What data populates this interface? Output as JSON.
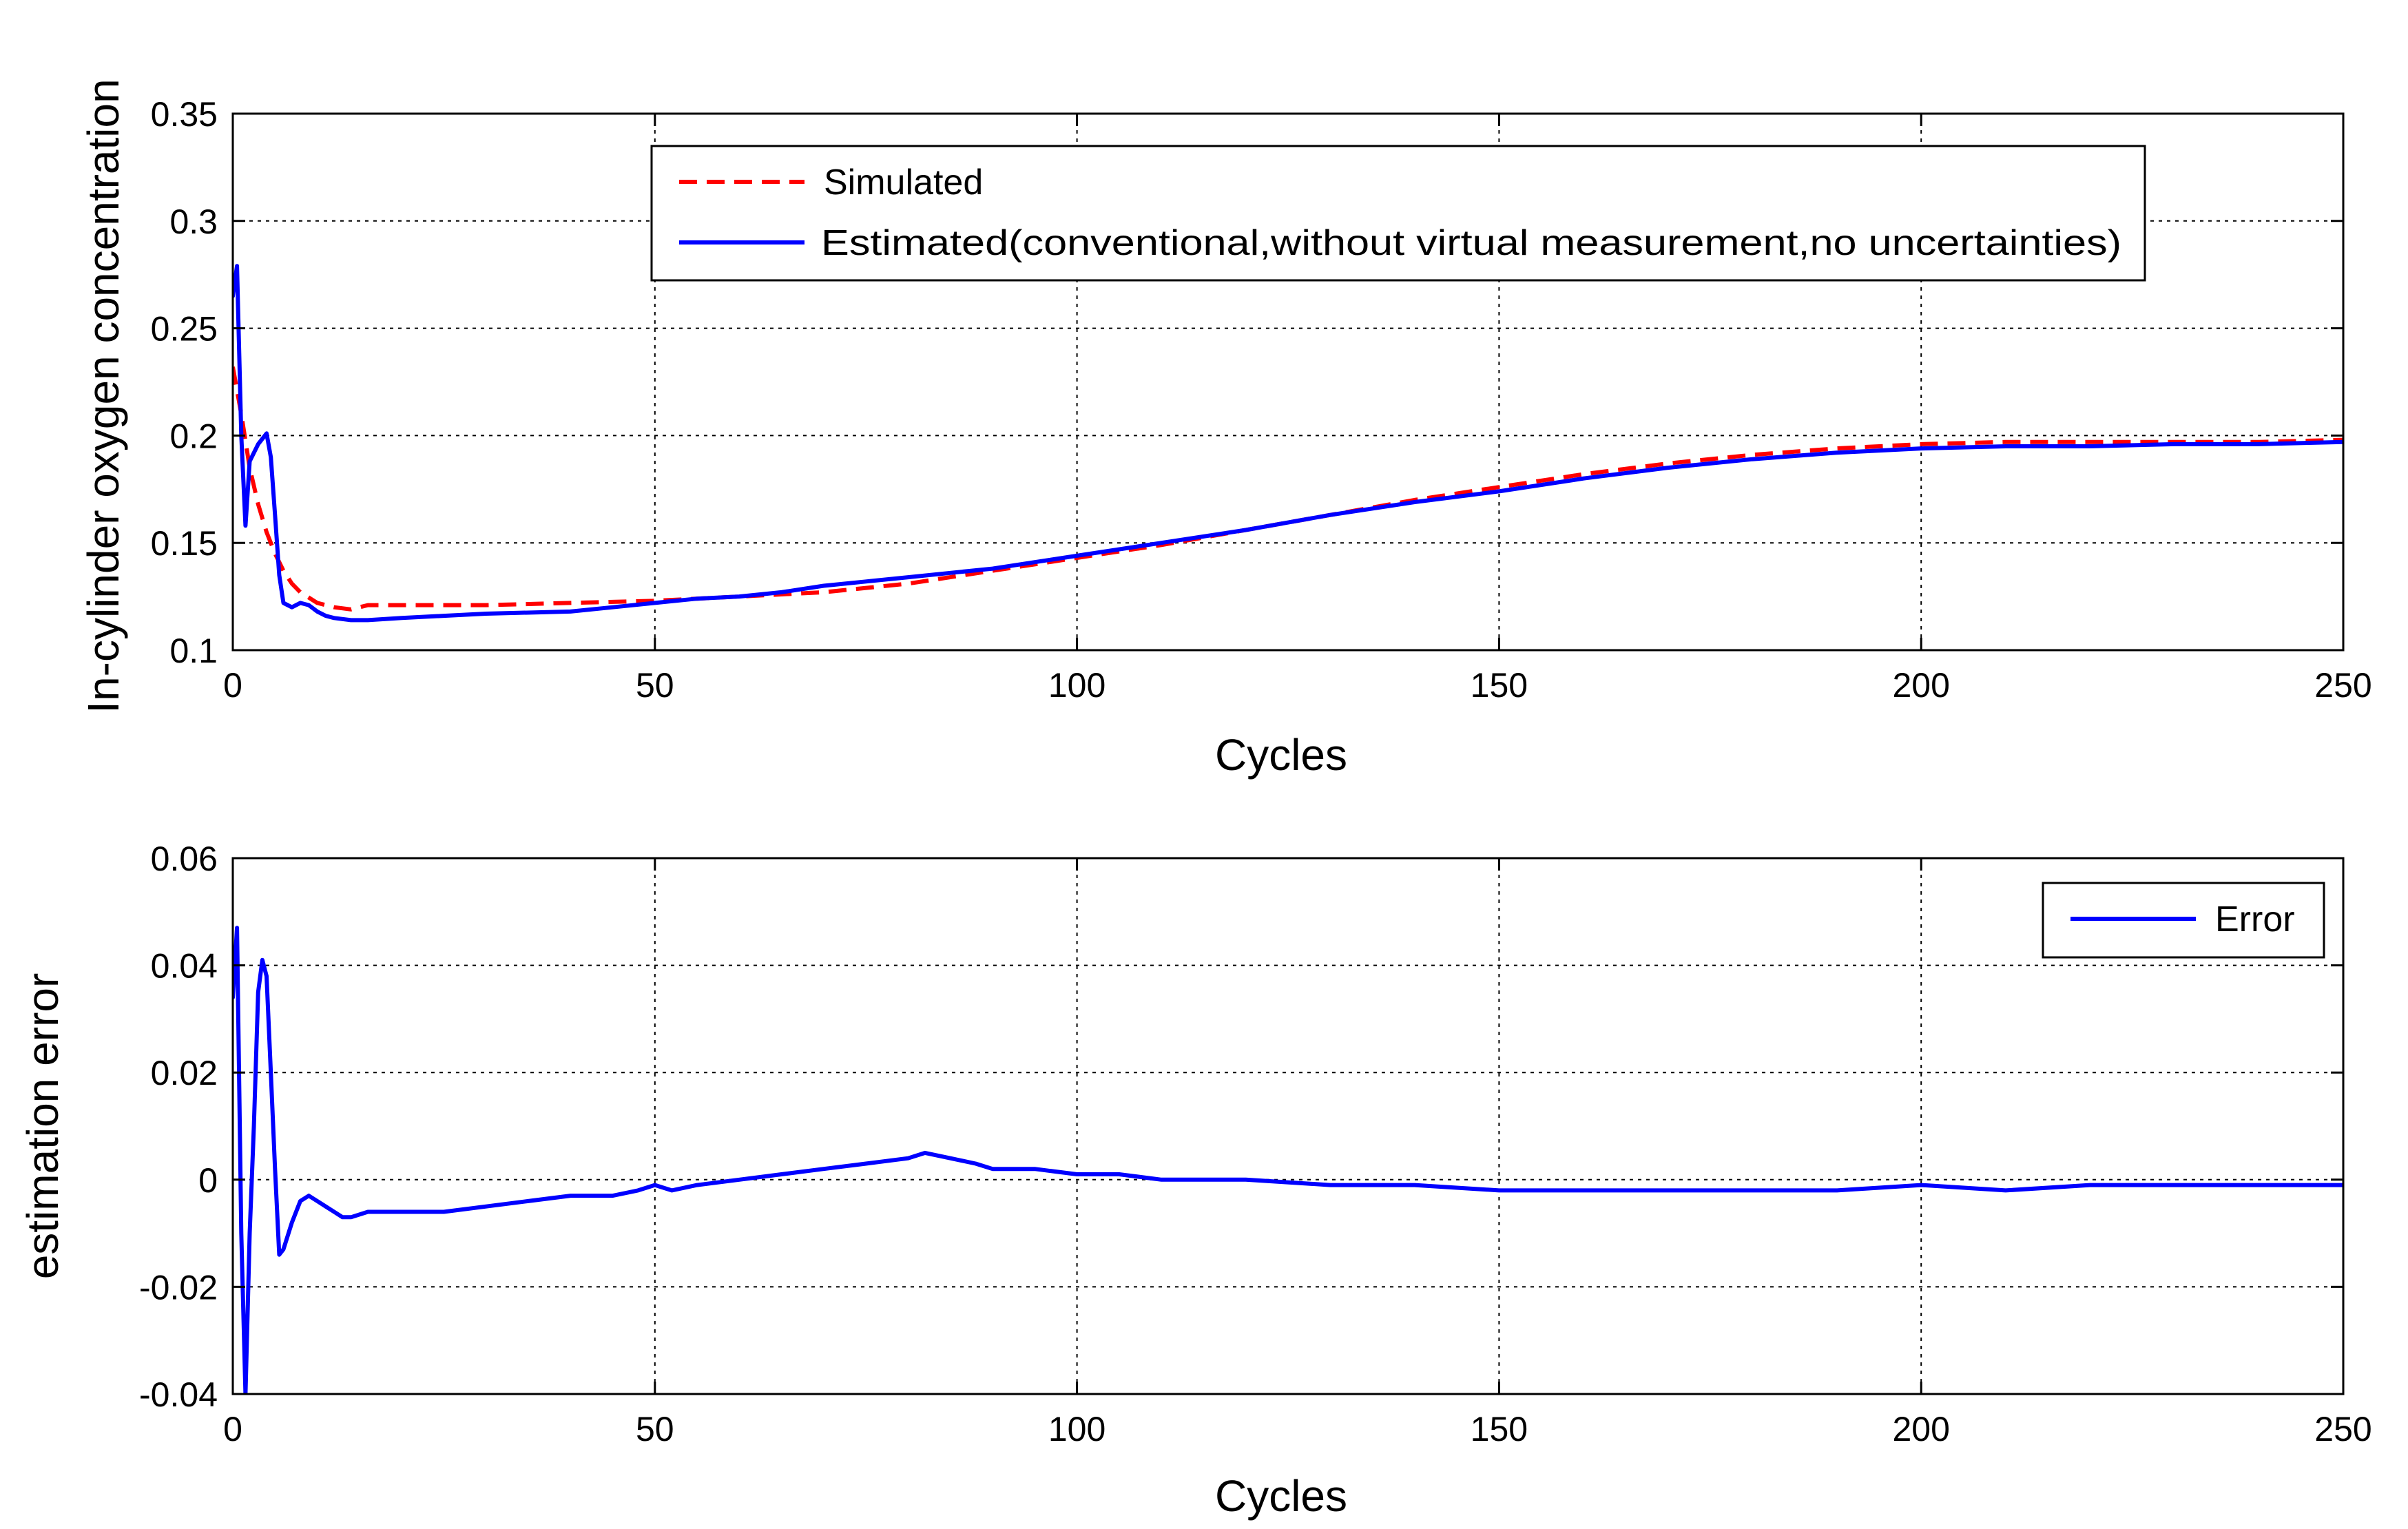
{
  "chart_data": [
    {
      "type": "line",
      "title": "",
      "xlabel": "Cycles",
      "ylabel": "In-cylinder oxygen concentration",
      "xlim": [
        0,
        250
      ],
      "ylim": [
        0.1,
        0.35
      ],
      "xticks": [
        0,
        50,
        100,
        150,
        200,
        250
      ],
      "xtick_labels": [
        "0",
        "50",
        "100",
        "150",
        "200",
        "250"
      ],
      "yticks": [
        0.1,
        0.15,
        0.2,
        0.25,
        0.3,
        0.35
      ],
      "ytick_labels": [
        "0.1",
        "0.15",
        "0.2",
        "0.25",
        "0.3",
        "0.35"
      ],
      "grid": true,
      "legend_position": "top-center",
      "series": [
        {
          "name": "Simulated",
          "color": "#ff0000",
          "style": "dashed",
          "x": [
            0,
            1,
            2,
            3,
            4,
            5,
            6,
            7,
            8,
            10,
            12,
            14,
            16,
            20,
            30,
            40,
            50,
            60,
            70,
            80,
            90,
            100,
            110,
            120,
            130,
            140,
            150,
            160,
            170,
            180,
            190,
            200,
            210,
            220,
            230,
            240,
            250
          ],
          "values": [
            0.232,
            0.21,
            0.185,
            0.168,
            0.155,
            0.145,
            0.137,
            0.131,
            0.127,
            0.122,
            0.12,
            0.119,
            0.121,
            0.121,
            0.121,
            0.122,
            0.123,
            0.125,
            0.127,
            0.131,
            0.137,
            0.143,
            0.149,
            0.156,
            0.163,
            0.17,
            0.176,
            0.182,
            0.187,
            0.191,
            0.194,
            0.196,
            0.197,
            0.197,
            0.197,
            0.197,
            0.198
          ]
        },
        {
          "name": "Estimated(conventional,without virtual measurement,no uncertainties)",
          "color": "#0000ff",
          "style": "solid",
          "x": [
            0,
            0.5,
            1,
            1.5,
            2,
            3,
            4,
            4.5,
            5,
            5.5,
            6,
            7,
            8,
            9,
            10,
            11,
            12,
            14,
            16,
            20,
            25,
            30,
            40,
            45,
            50,
            55,
            60,
            65,
            70,
            75,
            80,
            85,
            90,
            95,
            100,
            110,
            120,
            130,
            140,
            150,
            160,
            170,
            180,
            190,
            200,
            210,
            220,
            230,
            240,
            250
          ],
          "values": [
            0.265,
            0.279,
            0.2,
            0.158,
            0.188,
            0.196,
            0.201,
            0.19,
            0.163,
            0.135,
            0.122,
            0.12,
            0.122,
            0.121,
            0.118,
            0.116,
            0.115,
            0.114,
            0.114,
            0.115,
            0.116,
            0.117,
            0.118,
            0.12,
            0.122,
            0.124,
            0.125,
            0.127,
            0.13,
            0.132,
            0.134,
            0.136,
            0.138,
            0.141,
            0.144,
            0.15,
            0.156,
            0.163,
            0.169,
            0.174,
            0.18,
            0.185,
            0.189,
            0.192,
            0.194,
            0.195,
            0.195,
            0.196,
            0.196,
            0.197
          ]
        }
      ]
    },
    {
      "type": "line",
      "title": "",
      "xlabel": "Cycles",
      "ylabel": "estimation error",
      "xlim": [
        0,
        250
      ],
      "ylim": [
        -0.04,
        0.06
      ],
      "xticks": [
        0,
        50,
        100,
        150,
        200,
        250
      ],
      "xtick_labels": [
        "0",
        "50",
        "100",
        "150",
        "200",
        "250"
      ],
      "yticks": [
        -0.04,
        -0.02,
        0,
        0.02,
        0.04,
        0.06
      ],
      "ytick_labels": [
        "-0.04",
        "-0.02",
        "0",
        "0.02",
        "0.04",
        "0.06"
      ],
      "grid": true,
      "legend_position": "top-right",
      "series": [
        {
          "name": "Error",
          "color": "#0000ff",
          "style": "solid",
          "x": [
            0,
            0.5,
            1,
            1.5,
            2,
            2.5,
            3,
            3.5,
            4,
            4.5,
            5,
            5.5,
            6,
            7,
            8,
            9,
            10,
            11,
            12,
            13,
            14,
            16,
            20,
            25,
            30,
            35,
            40,
            45,
            48,
            50,
            52,
            55,
            60,
            65,
            70,
            75,
            80,
            82,
            85,
            88,
            90,
            95,
            100,
            105,
            110,
            120,
            130,
            140,
            150,
            160,
            170,
            180,
            190,
            200,
            210,
            220,
            230,
            240,
            250
          ],
          "values": [
            0.034,
            0.047,
            -0.01,
            -0.04,
            -0.01,
            0.01,
            0.035,
            0.041,
            0.038,
            0.02,
            0.002,
            -0.014,
            -0.013,
            -0.008,
            -0.004,
            -0.003,
            -0.004,
            -0.005,
            -0.006,
            -0.007,
            -0.007,
            -0.006,
            -0.006,
            -0.006,
            -0.005,
            -0.004,
            -0.003,
            -0.003,
            -0.002,
            -0.001,
            -0.002,
            -0.001,
            0.0,
            0.001,
            0.002,
            0.003,
            0.004,
            0.005,
            0.004,
            0.003,
            0.002,
            0.002,
            0.001,
            0.001,
            0.0,
            0.0,
            -0.001,
            -0.001,
            -0.002,
            -0.002,
            -0.002,
            -0.002,
            -0.002,
            -0.001,
            -0.002,
            -0.001,
            -0.001,
            -0.001,
            -0.001
          ]
        }
      ]
    }
  ]
}
